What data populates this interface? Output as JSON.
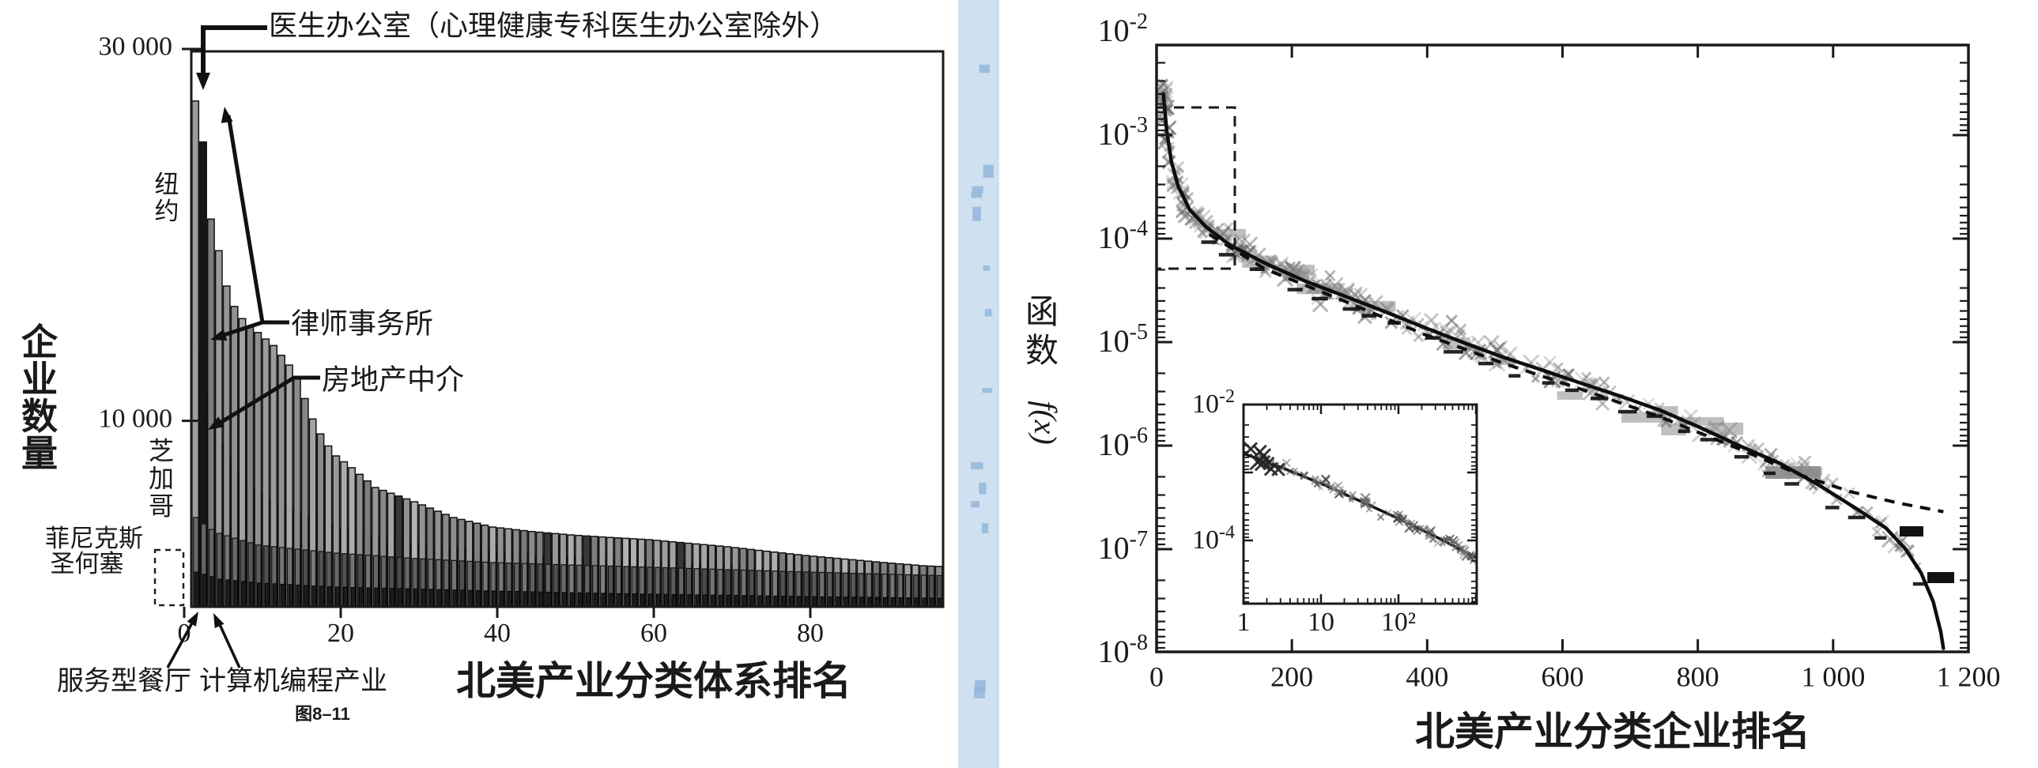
{
  "figure": {
    "caption": "图8–11",
    "gutter_color": "#cfe0f0",
    "ink": "#1a1a1a"
  },
  "left_chart": {
    "ylabel": "企业数量",
    "xlabel": "北美产业分类体系排名",
    "ytick_labels": [
      "30 000",
      "10 000"
    ],
    "xtick_labels": [
      "0",
      "20",
      "40",
      "60",
      "80"
    ],
    "annotations": {
      "doctor": "医生办公室（心理健康专科医生办公室除外）",
      "newyork": "纽约",
      "law": "律师事务所",
      "realestate": "房地产中介",
      "chicago": "芝加哥",
      "phoenix": "菲尼克斯",
      "sanjose": "圣何塞",
      "restaurant": "服务型餐厅",
      "programming": "计算机编程产业"
    }
  },
  "right_chart": {
    "ylabel_cjk": "函数",
    "ylabel_math": "f(x)",
    "xlabel": "北美产业分类企业排名",
    "ytick_exponents": [
      -2,
      -3,
      -4,
      -5,
      -6,
      -7,
      -8
    ],
    "xtick_labels": [
      "0",
      "200",
      "400",
      "600",
      "800",
      "1 000",
      "1 200"
    ],
    "inset": {
      "ytick_exponents": [
        -2,
        -4
      ],
      "xtick_labels": [
        "1",
        "10",
        "10²"
      ]
    }
  },
  "chart_data": [
    {
      "type": "bar",
      "title": "美国各城市产业企业数量按NAICS排名",
      "xlabel": "北美产业分类体系排名",
      "ylabel": "企业数量",
      "ylim": [
        0,
        30000
      ],
      "xticks": [
        0,
        20,
        40,
        60,
        80
      ],
      "yticks": [
        10000,
        30000
      ],
      "n_ranks": 97,
      "series": [
        {
          "name": "纽约",
          "anchors": [
            [
              1,
              28200
            ],
            [
              2,
              27200
            ],
            [
              3,
              25000
            ],
            [
              4,
              20850
            ],
            [
              5,
              19150
            ],
            [
              6,
              17250
            ],
            [
              7,
              16150
            ],
            [
              8,
              15500
            ],
            [
              9,
              15050
            ],
            [
              10,
              14750
            ],
            [
              12,
              14050
            ],
            [
              14,
              13000
            ],
            [
              15,
              12250
            ],
            [
              16,
              11200
            ],
            [
              17,
              10100
            ],
            [
              18,
              9300
            ],
            [
              19,
              8650
            ],
            [
              20,
              8115
            ],
            [
              22,
              7480
            ],
            [
              25,
              6415
            ],
            [
              30,
              5650
            ],
            [
              35,
              4800
            ],
            [
              40,
              4290
            ],
            [
              45,
              4050
            ],
            [
              50,
              3865
            ],
            [
              55,
              3730
            ],
            [
              60,
              3610
            ],
            [
              65,
              3420
            ],
            [
              70,
              3230
            ],
            [
              75,
              2990
            ],
            [
              80,
              2760
            ],
            [
              85,
              2570
            ],
            [
              90,
              2380
            ],
            [
              95,
              2210
            ],
            [
              97,
              2170
            ]
          ]
        },
        {
          "name": "芝加哥",
          "anchors": [
            [
              1,
              25000
            ],
            [
              2,
              13900
            ],
            [
              3,
              11800
            ],
            [
              4,
              10100
            ],
            [
              5,
              8840
            ],
            [
              6,
              7990
            ],
            [
              7,
              7310
            ],
            [
              8,
              6800
            ],
            [
              9,
              6370
            ],
            [
              10,
              6080
            ],
            [
              12,
              5480
            ],
            [
              15,
              5100
            ],
            [
              20,
              4250
            ],
            [
              25,
              3740
            ],
            [
              30,
              3400
            ],
            [
              40,
              2980
            ],
            [
              50,
              2680
            ],
            [
              60,
              2470
            ],
            [
              70,
              2210
            ],
            [
              80,
              1960
            ],
            [
              90,
              1750
            ],
            [
              97,
              1680
            ]
          ]
        },
        {
          "name": "菲尼克斯",
          "anchors": [
            [
              1,
              5440
            ],
            [
              2,
              4800
            ],
            [
              3,
              4460
            ],
            [
              4,
              4160
            ],
            [
              5,
              3950
            ],
            [
              7,
              3690
            ],
            [
              10,
              3320
            ],
            [
              15,
              3100
            ],
            [
              20,
              2890
            ],
            [
              30,
              2600
            ],
            [
              40,
              2380
            ],
            [
              50,
              2250
            ],
            [
              60,
              2130
            ],
            [
              70,
              2000
            ],
            [
              80,
              1870
            ],
            [
              90,
              1760
            ],
            [
              97,
              1680
            ]
          ]
        },
        {
          "name": "圣何塞",
          "anchors": [
            [
              1,
              2040
            ],
            [
              2,
              1870
            ],
            [
              3,
              1750
            ],
            [
              5,
              1490
            ],
            [
              10,
              1280
            ],
            [
              15,
              1170
            ],
            [
              20,
              1060
            ],
            [
              30,
              960
            ],
            [
              40,
              850
            ],
            [
              50,
              760
            ],
            [
              60,
              680
            ],
            [
              70,
              620
            ],
            [
              80,
              550
            ],
            [
              90,
              500
            ],
            [
              97,
              460
            ]
          ]
        }
      ],
      "highlights": {
        "doctor_offices": {
          "label": "医生办公室（心理健康专科医生办公室除外）",
          "rank": 1,
          "value": 28200
        },
        "law_firms": {
          "label": "律师事务所",
          "rank": 2,
          "value": 27200
        },
        "real_estate": {
          "label": "房地产中介",
          "rank": 4,
          "value": 20850
        },
        "restaurants": {
          "label": "服务型餐厅",
          "rank": 1
        },
        "programming": {
          "label": "计算机编程产业",
          "rank": 3
        }
      }
    },
    {
      "type": "line",
      "xlabel": "北美产业分类企业排名",
      "ylabel": "函数f(x)",
      "xlim": [
        0,
        1200
      ],
      "yscale": "log",
      "ylim": [
        1e-08,
        0.01
      ],
      "fit_curve": [
        [
          10,
          0.0025
        ],
        [
          15,
          0.0011
        ],
        [
          22,
          0.00055
        ],
        [
          32,
          0.00032
        ],
        [
          49,
          0.00019
        ],
        [
          73,
          0.00013
        ],
        [
          108,
          8.7e-05
        ],
        [
          160,
          5.8e-05
        ],
        [
          219,
          3.9e-05
        ],
        [
          277,
          2.8e-05
        ],
        [
          335,
          2e-05
        ],
        [
          394,
          1.4e-05
        ],
        [
          452,
          1e-05
        ],
        [
          511,
          7.2e-06
        ],
        [
          569,
          5.4e-06
        ],
        [
          628,
          4e-06
        ],
        [
          686,
          3e-06
        ],
        [
          744,
          2.2e-06
        ],
        [
          803,
          1.5e-06
        ],
        [
          861,
          1e-06
        ],
        [
          920,
          6.8e-07
        ],
        [
          978,
          4.2e-07
        ],
        [
          1037,
          2.4e-07
        ],
        [
          1078,
          1.6e-07
        ],
        [
          1107,
          1e-07
        ],
        [
          1130,
          5.9e-08
        ],
        [
          1148,
          3.1e-08
        ],
        [
          1159,
          1.6e-08
        ],
        [
          1163,
          1.1e-08
        ]
      ],
      "dashed_powerlaw": [
        [
          78,
          0.00011
        ],
        [
          160,
          5.1e-05
        ],
        [
          277,
          2.5e-05
        ],
        [
          394,
          1.2e-05
        ],
        [
          511,
          6.3e-06
        ],
        [
          628,
          3.5e-06
        ],
        [
          744,
          1.9e-06
        ],
        [
          861,
          9.3e-07
        ],
        [
          955,
          5.1e-07
        ],
        [
          1025,
          3.6e-07
        ],
        [
          1095,
          2.8e-07
        ],
        [
          1163,
          2.3e-07
        ]
      ],
      "scatter_band": "grey x and + markers tracking fit curve, rank 10-1150, spread about ±0.15 decade",
      "zoom_box": {
        "x": [
          0,
          115
        ],
        "y_exp": [
          -4.3,
          -2.73
        ]
      },
      "inset": {
        "xscale": "log",
        "yscale": "log",
        "xlim": [
          1,
          1000
        ],
        "ylim_exp": [
          -4.9,
          -2
        ],
        "curve": [
          [
            1,
            0.0019
          ],
          [
            3,
            0.0012
          ],
          [
            10,
            0.00069
          ],
          [
            32,
            0.00038
          ],
          [
            100,
            0.00021
          ],
          [
            320,
            0.00011
          ],
          [
            1000,
            5.6e-05
          ]
        ]
      }
    }
  ]
}
